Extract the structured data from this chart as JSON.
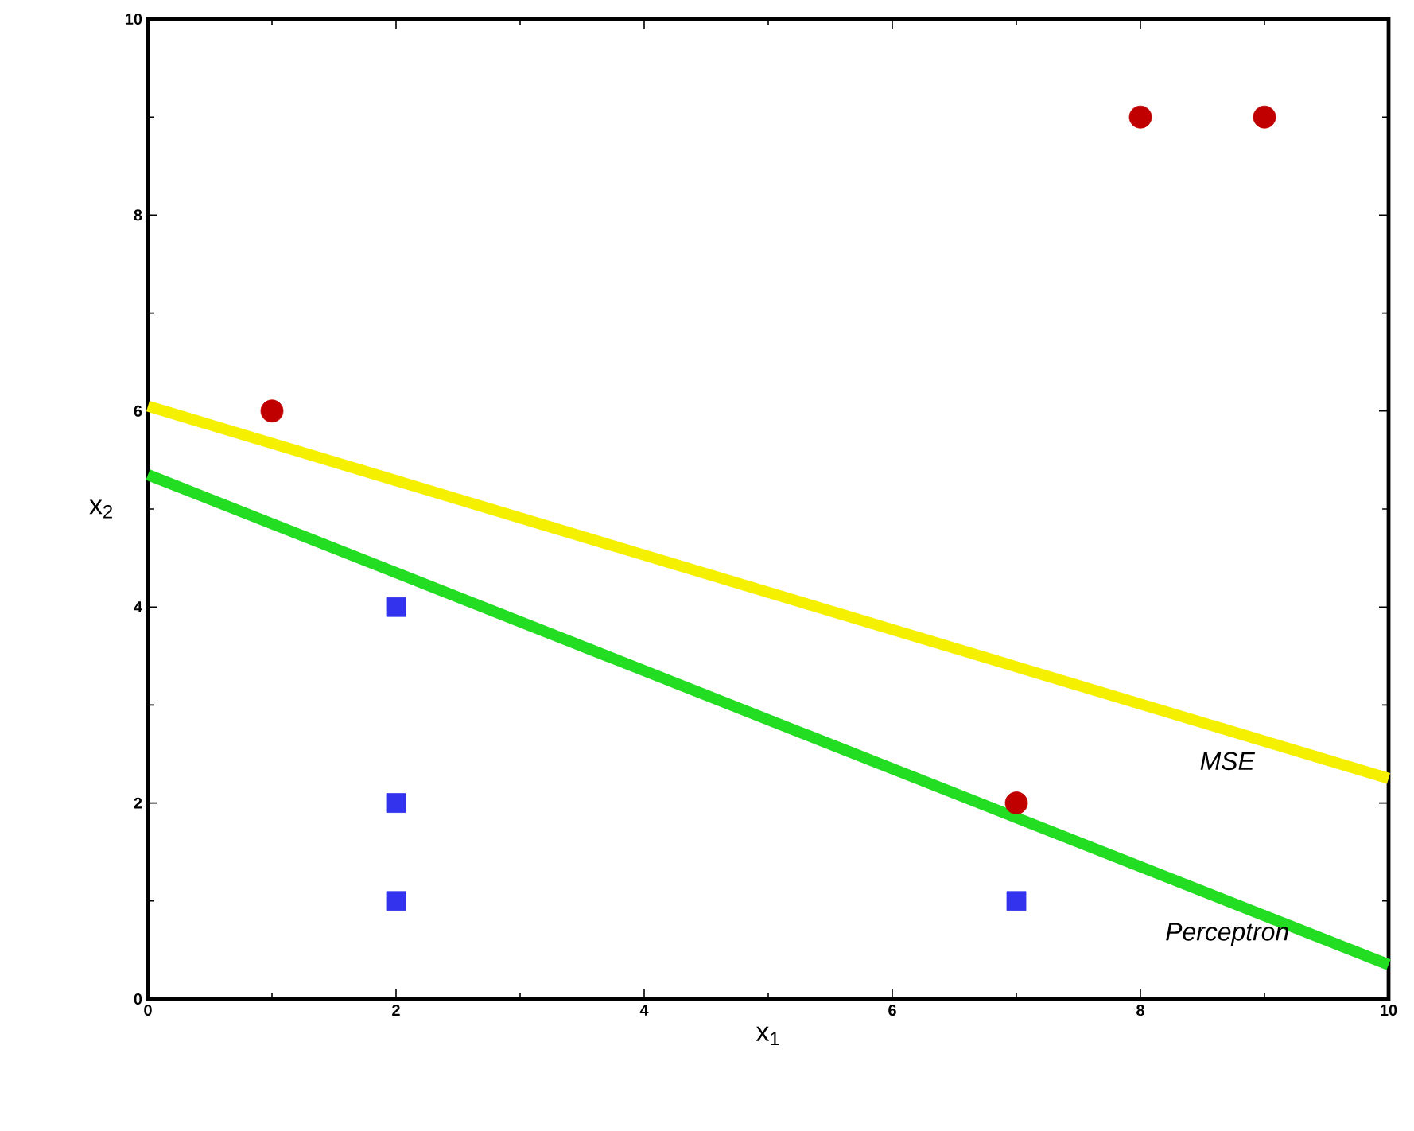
{
  "chart_data": {
    "type": "scatter",
    "xlabel": "x$_{1}$",
    "ylabel": "x$_{2}$",
    "xlim": [
      0,
      10
    ],
    "ylim": [
      0,
      10
    ],
    "xticks": [
      0,
      2,
      4,
      6,
      8,
      10
    ],
    "yticks": [
      0,
      2,
      4,
      6,
      8,
      10
    ],
    "grid": false,
    "legend": false,
    "series": [
      {
        "marker": "circle",
        "color": "#c00000",
        "x": [
          1,
          7,
          8,
          9
        ],
        "values": [
          6,
          2,
          9,
          9
        ]
      },
      {
        "marker": "square",
        "color": "#3333ee",
        "x": [
          2,
          2,
          2,
          7
        ],
        "values": [
          4,
          2,
          1,
          1
        ]
      },
      {
        "type": "line",
        "name": "MSE",
        "marker": "none",
        "line_style": "solid",
        "color": "#f5f000",
        "x": [
          0,
          10
        ],
        "values": [
          6.05,
          2.25
        ]
      },
      {
        "type": "line",
        "name": "Perceptron",
        "marker": "none",
        "line_style": "solid",
        "color": "#22dd22",
        "x": [
          0,
          10
        ],
        "values": [
          5.35,
          0.35
        ]
      }
    ]
  }
}
